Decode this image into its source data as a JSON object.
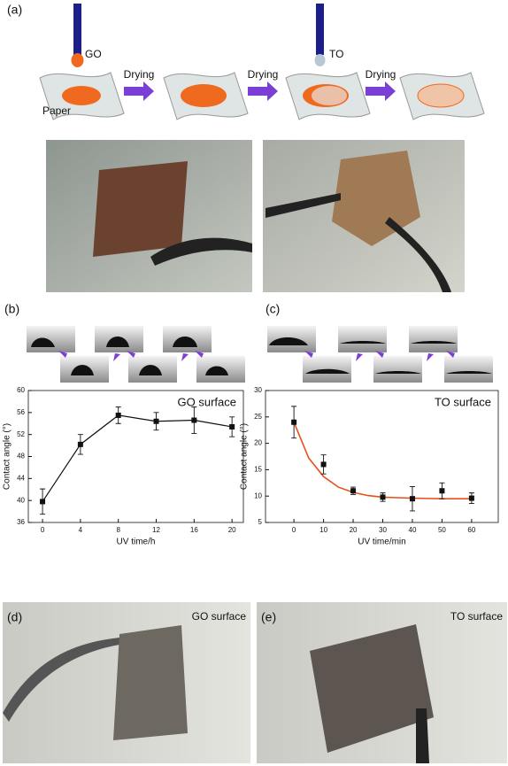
{
  "schematic": {
    "label": "(a)",
    "go": "GO",
    "paper": "Paper",
    "drying": [
      "Drying",
      "Drying",
      "Drying"
    ],
    "to": "TO"
  },
  "panels": {
    "b": "(b)",
    "c": "(c)",
    "d": "(d)",
    "e": "(e)",
    "d_note": "GO surface",
    "e_note": "TO surface"
  },
  "chart_data": [
    {
      "type": "line",
      "annotation": "GO surface",
      "xlabel": "UV time/h",
      "ylabel": "Contact angle (°)",
      "x": [
        0,
        4,
        8,
        12,
        16,
        20
      ],
      "values": [
        39.8,
        50.2,
        55.5,
        54.4,
        54.6,
        53.4
      ],
      "errors": [
        2.3,
        1.8,
        1.5,
        1.6,
        2.4,
        1.8
      ],
      "color": "#111111",
      "xlim": [
        -1.5,
        21.2
      ],
      "xticks": [
        0,
        4,
        8,
        12,
        16,
        20
      ],
      "ylim": [
        36,
        60
      ],
      "yticks": [
        36,
        40,
        44,
        48,
        52,
        56,
        60
      ]
    },
    {
      "type": "scatter",
      "annotation": "TO surface",
      "xlabel": "UV time/min",
      "ylabel": "Contact angle (°)",
      "x": [
        0,
        10,
        20,
        30,
        40,
        50,
        60
      ],
      "values": [
        24,
        16,
        11,
        9.8,
        9.5,
        11,
        9.6
      ],
      "errors": [
        3,
        1.8,
        0.7,
        0.8,
        2.3,
        1.5,
        1.0
      ],
      "color": "#111111",
      "fit": {
        "color": "#e8501a",
        "x": [
          0,
          5,
          10,
          15,
          20,
          25,
          30,
          35,
          40,
          45,
          50,
          55,
          60
        ],
        "values": [
          24,
          17.2,
          13.7,
          11.7,
          10.7,
          10.1,
          9.8,
          9.7,
          9.6,
          9.55,
          9.5,
          9.5,
          9.5
        ]
      },
      "xlim": [
        -9.6,
        69
      ],
      "xticks": [
        0,
        10,
        20,
        30,
        40,
        50,
        60
      ],
      "ylim": [
        5,
        30
      ],
      "yticks": [
        5,
        10,
        15,
        20,
        25,
        30
      ]
    }
  ]
}
